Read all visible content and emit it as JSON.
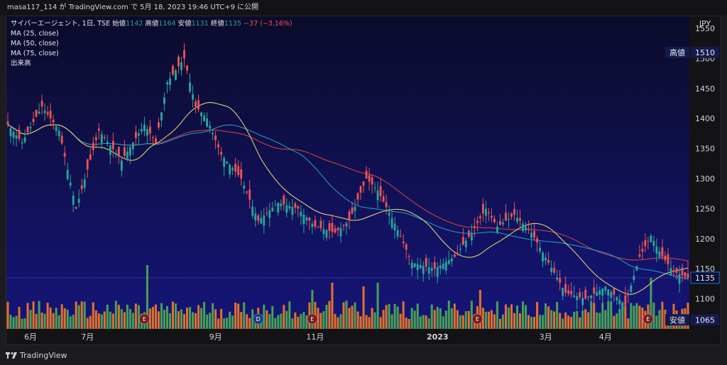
{
  "header": {
    "user": "masa117_114",
    "text": "masa117_114 が TradingView.com で 5月 18, 2023 19:46 UTC+9 に公開"
  },
  "legend": {
    "title": "サイバーエージェント, 1日, TSE",
    "open_label": "始値",
    "open": "1142",
    "high_label": "高値",
    "high": "1164",
    "low_label": "安値",
    "low": "1131",
    "close_label": "終値",
    "close": "1135",
    "change": "−37 (−3.16%)",
    "ma25": "MA (25, close)",
    "ma50": "MA (50, close)",
    "ma75": "MA (75, close)",
    "volume": "出来高"
  },
  "footer": {
    "brand": "TradingView"
  },
  "colors": {
    "background_top": "#0b0b2a",
    "background_bottom": "#15157a",
    "up": "#26a69a",
    "down": "#ef5350",
    "ma25": "#f2e26b",
    "ma50": "#22a3c9",
    "ma75": "#e0443e",
    "volume_up": "#4caf50",
    "volume_down": "#f57c1f",
    "price_tag": "#131a4e"
  },
  "chart_data": {
    "type": "candlestick",
    "currency": "JPY",
    "y_range": [
      1050,
      1570
    ],
    "y_ticks": [
      1100,
      1150,
      1200,
      1250,
      1300,
      1350,
      1400,
      1450,
      1500,
      1550
    ],
    "x_tick_labels": [
      "6月",
      "7月",
      "9月",
      "11月",
      "2023",
      "3月",
      "4月"
    ],
    "x_tick_bars": [
      8,
      28,
      73,
      108,
      151,
      189,
      210
    ],
    "num_bars": 240,
    "price_tags": [
      {
        "label": "高値",
        "value": 1510
      },
      {
        "label": "",
        "value": 1135
      },
      {
        "label": "安値",
        "value": 1065
      }
    ],
    "earnings_markers": [
      {
        "type": "E",
        "bar": 48
      },
      {
        "type": "D",
        "bar": 88
      },
      {
        "type": "E",
        "bar": 107
      },
      {
        "type": "E",
        "bar": 165
      },
      {
        "type": "E",
        "bar": 225
      }
    ],
    "volume_spikes": [
      {
        "bar": 49,
        "h": 90
      },
      {
        "bar": 107,
        "h": 55
      },
      {
        "bar": 114,
        "h": 65
      },
      {
        "bar": 125,
        "h": 60
      },
      {
        "bar": 130,
        "h": 65
      },
      {
        "bar": 166,
        "h": 55
      },
      {
        "bar": 226,
        "h": 72
      }
    ],
    "close_anchors": [
      [
        0,
        1390
      ],
      [
        5,
        1360
      ],
      [
        12,
        1420
      ],
      [
        18,
        1380
      ],
      [
        24,
        1250
      ],
      [
        32,
        1380
      ],
      [
        40,
        1330
      ],
      [
        48,
        1390
      ],
      [
        52,
        1360
      ],
      [
        56,
        1460
      ],
      [
        62,
        1500
      ],
      [
        66,
        1420
      ],
      [
        70,
        1400
      ],
      [
        75,
        1340
      ],
      [
        82,
        1300
      ],
      [
        88,
        1230
      ],
      [
        95,
        1260
      ],
      [
        102,
        1250
      ],
      [
        108,
        1220
      ],
      [
        115,
        1210
      ],
      [
        120,
        1230
      ],
      [
        126,
        1300
      ],
      [
        130,
        1280
      ],
      [
        136,
        1225
      ],
      [
        142,
        1160
      ],
      [
        150,
        1150
      ],
      [
        157,
        1170
      ],
      [
        163,
        1210
      ],
      [
        168,
        1250
      ],
      [
        172,
        1220
      ],
      [
        178,
        1240
      ],
      [
        184,
        1210
      ],
      [
        190,
        1160
      ],
      [
        196,
        1110
      ],
      [
        203,
        1100
      ],
      [
        210,
        1120
      ],
      [
        217,
        1090
      ],
      [
        222,
        1170
      ],
      [
        226,
        1205
      ],
      [
        230,
        1170
      ],
      [
        234,
        1145
      ],
      [
        239,
        1135
      ]
    ]
  }
}
